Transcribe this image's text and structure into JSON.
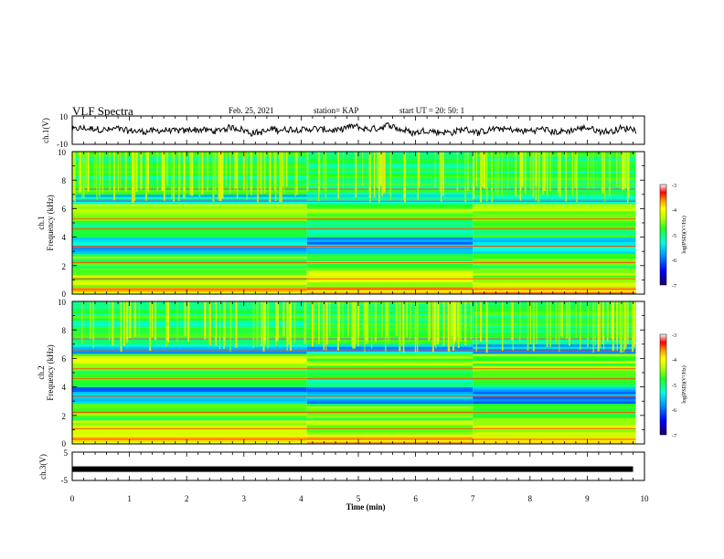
{
  "header": {
    "title": "VLF Spectra",
    "date": "Feb. 25, 2021",
    "station": "station= KAP",
    "start": "start  UT =  20: 50: 1"
  },
  "chart_data": [
    {
      "type": "line",
      "panel": "ch1_waveform",
      "ylabel": "ch.1(V)",
      "ylim": [
        -10,
        10
      ],
      "yticks": [
        "10",
        "-10"
      ],
      "xlim": [
        0,
        10
      ],
      "note": "noisy waveform approx within +/-5 V"
    },
    {
      "type": "heatmap",
      "panel": "ch1_spectrogram",
      "ylabel_line1": "ch.1",
      "ylabel_line2": "Frequency (kHz)",
      "ylim": [
        0,
        10
      ],
      "yticks": [
        "0",
        "2",
        "4",
        "6",
        "8",
        "10"
      ],
      "xlim": [
        0,
        9.85
      ],
      "colorbar": {
        "label": "log(PSD)(V²/Hz)",
        "range": [
          -7,
          -3
        ],
        "ticks": [
          "-3",
          "-4",
          "-5",
          "-6",
          "-7"
        ]
      },
      "regime_change_times_min": [
        4.1,
        7.0
      ]
    },
    {
      "type": "heatmap",
      "panel": "ch2_spectrogram",
      "ylabel_line1": "ch.2",
      "ylabel_line2": "Frequency (kHz)",
      "ylim": [
        0,
        10
      ],
      "yticks": [
        "0",
        "2",
        "4",
        "6",
        "8",
        "10"
      ],
      "xlim": [
        0,
        9.85
      ],
      "colorbar": {
        "label": "log(PSD)(V²/Hz)",
        "range": [
          -7,
          -3
        ],
        "ticks": [
          "-3",
          "-4",
          "-5",
          "-6",
          "-7"
        ]
      },
      "regime_change_times_min": [
        4.1,
        7.0
      ]
    },
    {
      "type": "line",
      "panel": "ch3_waveform",
      "ylabel": "ch.3(V)",
      "ylim": [
        -5,
        5
      ],
      "yticks": [
        "5",
        "-5"
      ],
      "xlim": [
        0,
        10
      ],
      "note": "flat trace near -1 V",
      "level_V": -1
    }
  ],
  "xaxis": {
    "label": "Time (min)",
    "ticks": [
      "0",
      "1",
      "2",
      "3",
      "4",
      "5",
      "6",
      "7",
      "8",
      "9",
      "10"
    ]
  }
}
